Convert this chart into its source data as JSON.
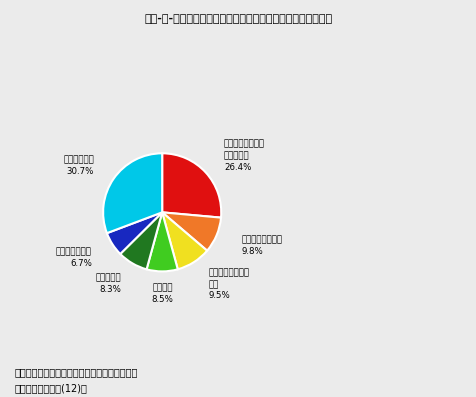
{
  "title": "第２-２-６図　会社等の研究者の産業別構成比（平成１１年）",
  "slices": [
    {
      "label": "通信・電子・電気\n計測器工業\n26.4%",
      "value": 26.4,
      "color": "#e01010"
    },
    {
      "label": "電気機械器具工業\n9.8%",
      "value": 9.8,
      "color": "#f07828"
    },
    {
      "label": "医薬品以外の化学\n工業\n9.5%",
      "value": 9.5,
      "color": "#f0e020"
    },
    {
      "label": "機械工業\n8.5%",
      "value": 8.5,
      "color": "#40cc20"
    },
    {
      "label": "自動車工業\n8.3%",
      "value": 8.3,
      "color": "#207820"
    },
    {
      "label": "ソフトウェア業\n6.7%",
      "value": 6.7,
      "color": "#1828c0"
    },
    {
      "label": "その他の業種\n30.7%",
      "value": 30.7,
      "color": "#00c8e8"
    }
  ],
  "footnote1": "資料：総務庁統計局「科学技術研究調査報告」",
  "footnote2": "（参照：付属資料(12)）",
  "start_angle": 90,
  "background_color": "#ebebeb"
}
